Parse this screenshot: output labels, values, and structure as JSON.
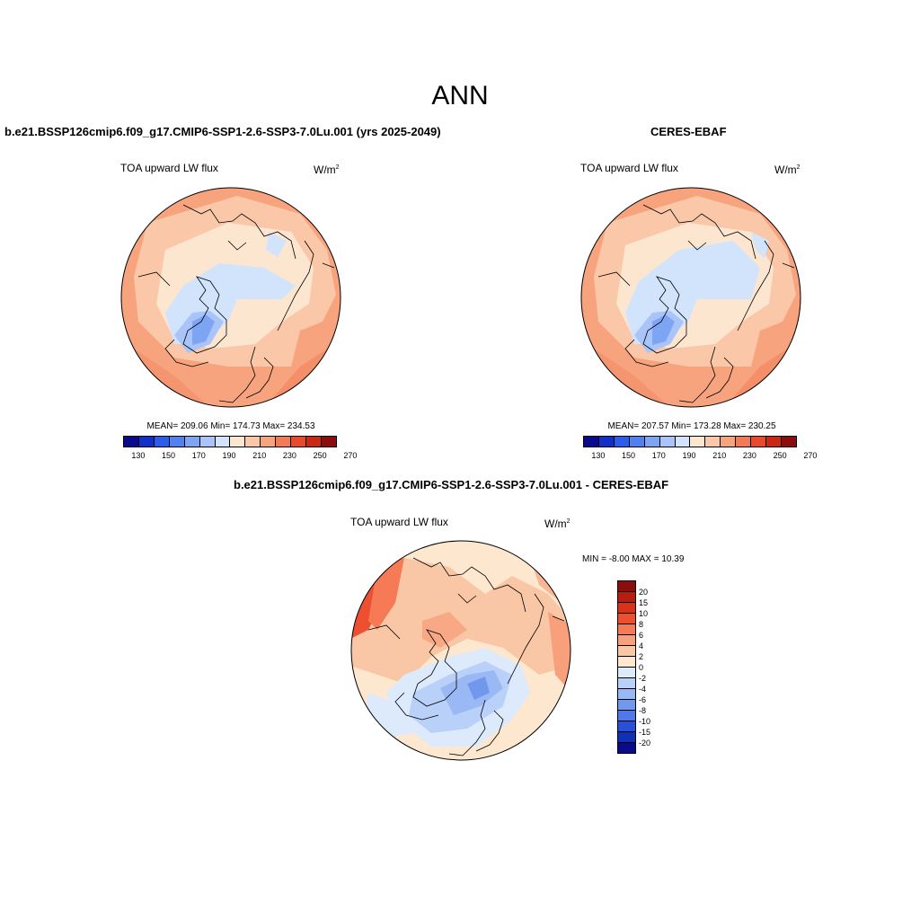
{
  "figure_title": "ANN",
  "panels": [
    {
      "title": "b.e21.BSSP126cmip6.f09_g17.CMIP6-SSP1-2.6-SSP3-7.0Lu.001 (yrs 2025-2049)",
      "variable": "TOA upward LW flux",
      "units_base": "W/m",
      "units_exp": "2",
      "stats": "MEAN= 209.06  Min= 174.73  Max= 234.53",
      "colorbar_ticks": [
        "130",
        "150",
        "170",
        "190",
        "210",
        "230",
        "250",
        "270"
      ]
    },
    {
      "title": "CERES-EBAF",
      "variable": "TOA upward LW flux",
      "units_base": "W/m",
      "units_exp": "2",
      "stats": "MEAN= 207.57  Min= 173.28  Max= 230.25",
      "colorbar_ticks": [
        "130",
        "150",
        "170",
        "190",
        "210",
        "230",
        "250",
        "270"
      ]
    },
    {
      "title": "b.e21.BSSP126cmip6.f09_g17.CMIP6-SSP1-2.6-SSP3-7.0Lu.001 - CERES-EBAF",
      "variable": "TOA upward LW flux",
      "units_base": "W/m",
      "units_exp": "2",
      "stats": "MIN =  -8.00 MAX =  10.39",
      "colorbar_ticks": [
        "20",
        "15",
        "10",
        "8",
        "6",
        "4",
        "2",
        "0",
        "-2",
        "-4",
        "-6",
        "-8",
        "-10",
        "-15",
        "-20"
      ]
    }
  ],
  "colors": {
    "abs_scale": [
      "#0a0a8c",
      "#1030c8",
      "#2a5ee8",
      "#4f82f0",
      "#7ea4f4",
      "#a8c4f8",
      "#d2e4fc",
      "#fde6d0",
      "#fac8a8",
      "#f7a47e",
      "#f27a55",
      "#e84a2c",
      "#c82814",
      "#8b0d0d"
    ],
    "diff_scale": [
      "#8b0d0d",
      "#b81d12",
      "#d8321a",
      "#ec5030",
      "#f57a55",
      "#f8a07c",
      "#fac7a6",
      "#fde7cf",
      "#ddeafc",
      "#b9d0f8",
      "#99b8f4",
      "#7298ee",
      "#4f78e8",
      "#2a50d8",
      "#1030b8",
      "#0a0a8c"
    ]
  }
}
